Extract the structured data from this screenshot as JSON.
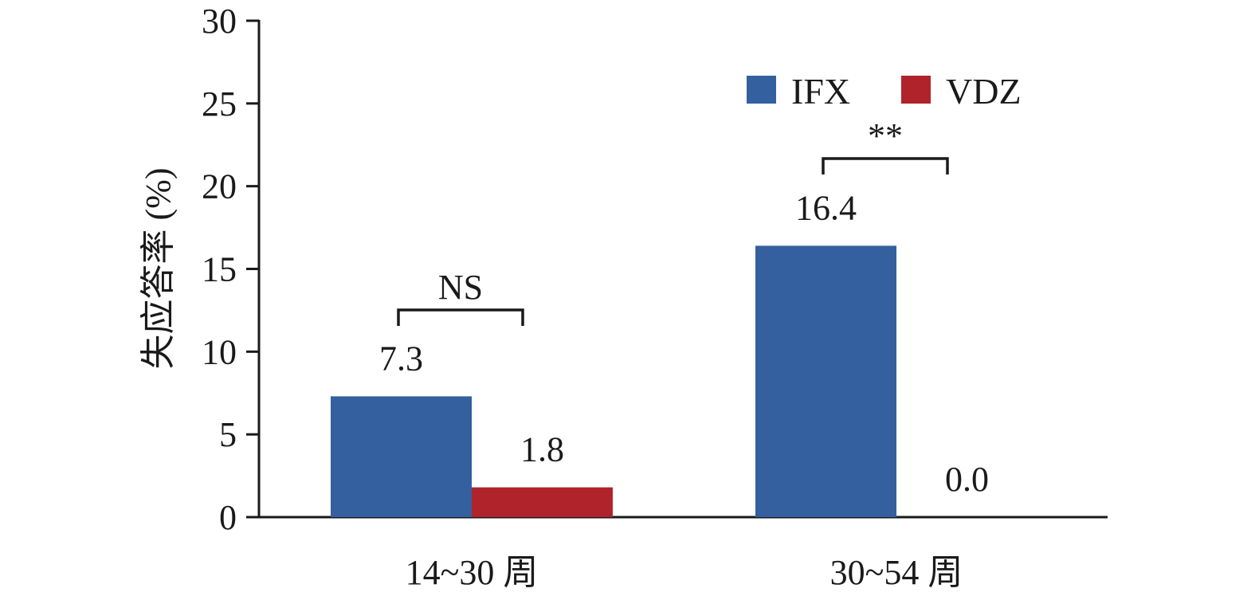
{
  "chart_data": {
    "type": "bar",
    "categories": [
      "14~30 周",
      "30~54 周"
    ],
    "series": [
      {
        "name": "IFX",
        "values": [
          7.3,
          16.4
        ],
        "labels": [
          "7.3",
          "16.4"
        ]
      },
      {
        "name": "VDZ",
        "values": [
          1.8,
          0.0
        ],
        "labels": [
          "1.8",
          "0.0"
        ]
      }
    ],
    "ylabel": "失应答率 (%)",
    "xlabel": "",
    "ylim": [
      0,
      30
    ],
    "yticks": [
      0,
      5,
      10,
      15,
      20,
      25,
      30
    ],
    "grid": false,
    "legend_position": "top-right",
    "colors": {
      "IFX": "#34609f",
      "VDZ": "#b0232b",
      "axis": "#1a1a1a"
    },
    "annotations": [
      {
        "category_index": 0,
        "text": "NS"
      },
      {
        "category_index": 1,
        "text": "**"
      }
    ]
  }
}
